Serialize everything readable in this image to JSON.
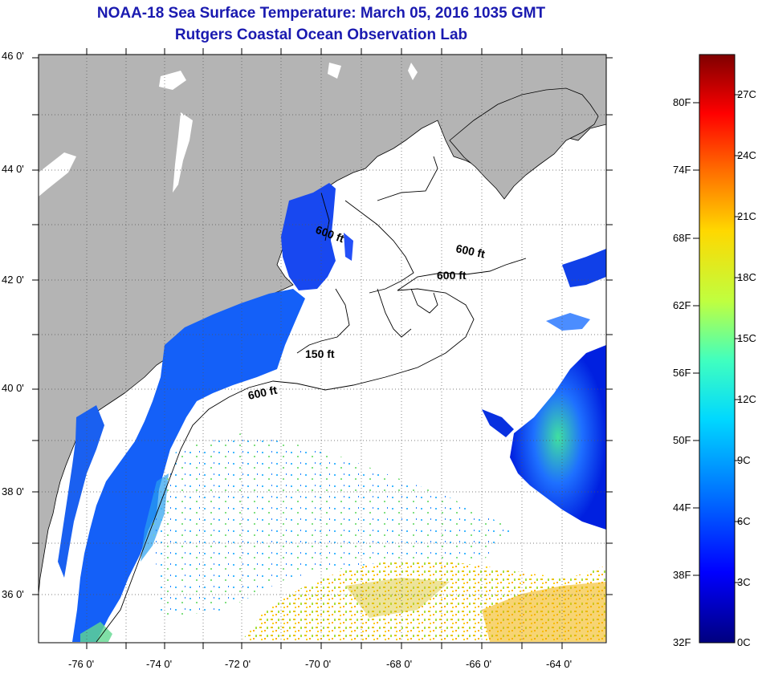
{
  "title": {
    "line1": "NOAA-18 Sea Surface Temperature:  March 05, 2016 1035 GMT",
    "line2": "Rutgers Coastal Ocean Observation Lab"
  },
  "map": {
    "lat_ticks": [
      "46 0'",
      "44 0'",
      "42 0'",
      "40 0'",
      "38 0'",
      "36 0'"
    ],
    "lon_ticks": [
      "-76 0'",
      "-74 0'",
      "-72 0'",
      "-70 0'",
      "-68 0'",
      "-66 0'",
      "-64 0'"
    ],
    "isobath_labels": [
      "600 ft",
      "600 ft",
      "600 ft",
      "150 ft",
      "600 ft"
    ],
    "colors": {
      "land": "#b4b4b4",
      "ocean_no_data": "#ffffff",
      "coastline": "#000000"
    }
  },
  "colorbar": {
    "fahrenheit": [
      "80F",
      "74F",
      "68F",
      "62F",
      "56F",
      "50F",
      "44F",
      "38F",
      "32F"
    ],
    "celsius": [
      "27C",
      "24C",
      "21C",
      "18C",
      "15C",
      "12C",
      "9C",
      "6C",
      "3C",
      "0C"
    ],
    "colors": [
      "#00007f",
      "#0000ff",
      "#0070ff",
      "#00d8ff",
      "#40ffbf",
      "#bfff40",
      "#ffd800",
      "#ff7000",
      "#ff0000",
      "#7f0000"
    ]
  }
}
